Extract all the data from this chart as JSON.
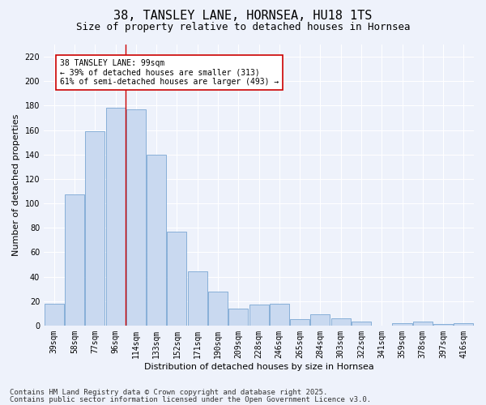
{
  "title": "38, TANSLEY LANE, HORNSEA, HU18 1TS",
  "subtitle": "Size of property relative to detached houses in Hornsea",
  "xlabel": "Distribution of detached houses by size in Hornsea",
  "ylabel": "Number of detached properties",
  "categories": [
    "39sqm",
    "58sqm",
    "77sqm",
    "96sqm",
    "114sqm",
    "133sqm",
    "152sqm",
    "171sqm",
    "190sqm",
    "209sqm",
    "228sqm",
    "246sqm",
    "265sqm",
    "284sqm",
    "303sqm",
    "322sqm",
    "341sqm",
    "359sqm",
    "378sqm",
    "397sqm",
    "416sqm"
  ],
  "values": [
    18,
    107,
    159,
    178,
    177,
    140,
    77,
    44,
    28,
    14,
    17,
    18,
    5,
    9,
    6,
    3,
    0,
    2,
    3,
    1,
    2
  ],
  "bar_color": "#c9d9f0",
  "bar_edge_color": "#6699cc",
  "ylim": [
    0,
    230
  ],
  "yticks": [
    0,
    20,
    40,
    60,
    80,
    100,
    120,
    140,
    160,
    180,
    200,
    220
  ],
  "vline_x_index": 3.5,
  "vline_color": "#cc0000",
  "annotation_text": "38 TANSLEY LANE: 99sqm\n← 39% of detached houses are smaller (313)\n61% of semi-detached houses are larger (493) →",
  "annotation_box_color": "#ffffff",
  "annotation_box_edge": "#cc0000",
  "footer1": "Contains HM Land Registry data © Crown copyright and database right 2025.",
  "footer2": "Contains public sector information licensed under the Open Government Licence v3.0.",
  "bg_color": "#eef2fb",
  "plot_bg_color": "#eef2fb",
  "grid_color": "#ffffff",
  "title_fontsize": 11,
  "subtitle_fontsize": 9,
  "axis_label_fontsize": 8,
  "tick_fontsize": 7,
  "annotation_fontsize": 7,
  "footer_fontsize": 6.5
}
